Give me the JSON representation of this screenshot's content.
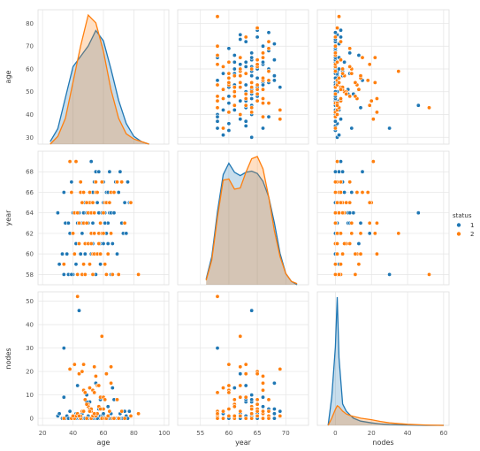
{
  "chart_data": {
    "type": "pairplot",
    "variables": [
      "age",
      "year",
      "nodes"
    ],
    "hue": "status",
    "legend": {
      "title": "status",
      "entries": [
        {
          "label": "1",
          "color": "#1f77b4"
        },
        {
          "label": "2",
          "color": "#ff7f0e"
        }
      ],
      "placement": "right"
    },
    "axes": {
      "age": {
        "label": "age",
        "lim": [
          17,
          103
        ],
        "ticks": [
          20,
          40,
          60,
          80,
          100
        ],
        "range_ticks": [
          30,
          40,
          50,
          60,
          70,
          80
        ]
      },
      "year": {
        "label": "year",
        "lim": [
          51,
          74
        ],
        "ticks": [
          55,
          60,
          65,
          70
        ],
        "range_ticks": [
          58,
          60,
          62,
          64,
          66,
          68
        ]
      },
      "nodes": {
        "label": "nodes",
        "lim": [
          -10,
          63
        ],
        "ticks": [
          0,
          20,
          40,
          60
        ],
        "range_ticks": [
          0,
          10,
          20,
          30,
          40,
          50
        ]
      }
    },
    "ranges": {
      "age": [
        27,
        86
      ],
      "year": [
        57,
        70
      ],
      "nodes": [
        -3,
        54
      ]
    },
    "grid": true,
    "series": [
      {
        "name": "1",
        "color": "#1f77b4",
        "points": [
          [
            30,
            64,
            1
          ],
          [
            31,
            59,
            2
          ],
          [
            33,
            60,
            0
          ],
          [
            34,
            59,
            0
          ],
          [
            34,
            66,
            9
          ],
          [
            34,
            58,
            30
          ],
          [
            35,
            63,
            0
          ],
          [
            36,
            60,
            1
          ],
          [
            37,
            63,
            0
          ],
          [
            37,
            58,
            0
          ],
          [
            38,
            69,
            21
          ],
          [
            38,
            62,
            3
          ],
          [
            39,
            67,
            0
          ],
          [
            40,
            58,
            0
          ],
          [
            40,
            64,
            0
          ],
          [
            41,
            60,
            23
          ],
          [
            41,
            64,
            0
          ],
          [
            42,
            69,
            1
          ],
          [
            42,
            59,
            2
          ],
          [
            43,
            63,
            14
          ],
          [
            43,
            64,
            2
          ],
          [
            44,
            61,
            0
          ],
          [
            44,
            63,
            1
          ],
          [
            45,
            67,
            0
          ],
          [
            45,
            60,
            0
          ],
          [
            46,
            58,
            2
          ],
          [
            46,
            63,
            0
          ],
          [
            47,
            64,
            0
          ],
          [
            47,
            66,
            0
          ],
          [
            48,
            58,
            11
          ],
          [
            48,
            60,
            0
          ],
          [
            49,
            63,
            0
          ],
          [
            49,
            64,
            10
          ],
          [
            50,
            61,
            0
          ],
          [
            50,
            63,
            1
          ],
          [
            50,
            64,
            0
          ],
          [
            51,
            59,
            13
          ],
          [
            51,
            64,
            7
          ],
          [
            52,
            60,
            4
          ],
          [
            52,
            65,
            0
          ],
          [
            53,
            61,
            1
          ],
          [
            53,
            63,
            0
          ],
          [
            54,
            62,
            0
          ],
          [
            54,
            66,
            0
          ],
          [
            55,
            58,
            1
          ],
          [
            55,
            68,
            15
          ],
          [
            56,
            60,
            0
          ],
          [
            57,
            61,
            5
          ],
          [
            57,
            64,
            1
          ],
          [
            58,
            59,
            0
          ],
          [
            58,
            61,
            1
          ],
          [
            59,
            64,
            1
          ],
          [
            59,
            67,
            4
          ],
          [
            60,
            61,
            1
          ],
          [
            60,
            67,
            0
          ],
          [
            61,
            59,
            0
          ],
          [
            61,
            64,
            0
          ],
          [
            62,
            62,
            19
          ],
          [
            62,
            66,
            0
          ],
          [
            63,
            61,
            0
          ],
          [
            63,
            63,
            0
          ],
          [
            64,
            68,
            0
          ],
          [
            64,
            64,
            0
          ],
          [
            65,
            58,
            0
          ],
          [
            65,
            64,
            2
          ],
          [
            66,
            58,
            0
          ],
          [
            66,
            61,
            13
          ],
          [
            67,
            64,
            8
          ],
          [
            68,
            67,
            0
          ],
          [
            69,
            60,
            0
          ],
          [
            70,
            58,
            0
          ],
          [
            70,
            66,
            0
          ],
          [
            71,
            68,
            2
          ],
          [
            72,
            63,
            0
          ],
          [
            73,
            62,
            0
          ],
          [
            74,
            65,
            3
          ],
          [
            75,
            62,
            1
          ],
          [
            76,
            67,
            0
          ],
          [
            77,
            65,
            3
          ],
          [
            78,
            65,
            1
          ],
          [
            44,
            64,
            46
          ],
          [
            49,
            63,
            7
          ],
          [
            57,
            68,
            4
          ],
          [
            60,
            65,
            2
          ],
          [
            63,
            66,
            5
          ],
          [
            39,
            58,
            0
          ],
          [
            52,
            69,
            3
          ],
          [
            56,
            65,
            0
          ],
          [
            46,
            62,
            2
          ],
          [
            54,
            67,
            1
          ],
          [
            61,
            63,
            0
          ],
          [
            67,
            66,
            0
          ],
          [
            42,
            61,
            0
          ],
          [
            48,
            65,
            0
          ],
          [
            58,
            63,
            8
          ],
          [
            53,
            66,
            0
          ]
        ]
      },
      {
        "name": "2",
        "color": "#ff7f0e",
        "points": [
          [
            34,
            59,
            0
          ],
          [
            38,
            69,
            21
          ],
          [
            39,
            66,
            0
          ],
          [
            41,
            60,
            23
          ],
          [
            41,
            64,
            0
          ],
          [
            42,
            69,
            1
          ],
          [
            43,
            58,
            52
          ],
          [
            43,
            64,
            2
          ],
          [
            44,
            63,
            19
          ],
          [
            45,
            66,
            0
          ],
          [
            45,
            67,
            1
          ],
          [
            46,
            58,
            3
          ],
          [
            46,
            65,
            20
          ],
          [
            47,
            63,
            23
          ],
          [
            47,
            66,
            12
          ],
          [
            48,
            58,
            11
          ],
          [
            48,
            61,
            8
          ],
          [
            49,
            63,
            0
          ],
          [
            50,
            61,
            6
          ],
          [
            50,
            64,
            5
          ],
          [
            51,
            65,
            4
          ],
          [
            51,
            59,
            13
          ],
          [
            52,
            61,
            0
          ],
          [
            52,
            62,
            3
          ],
          [
            53,
            58,
            1
          ],
          [
            53,
            60,
            12
          ],
          [
            53,
            65,
            1
          ],
          [
            54,
            60,
            11
          ],
          [
            54,
            62,
            22
          ],
          [
            55,
            67,
            1
          ],
          [
            55,
            66,
            18
          ],
          [
            56,
            60,
            14
          ],
          [
            57,
            61,
            5
          ],
          [
            57,
            62,
            14
          ],
          [
            58,
            63,
            9
          ],
          [
            59,
            62,
            35
          ],
          [
            59,
            67,
            0
          ],
          [
            60,
            62,
            9
          ],
          [
            61,
            59,
            0
          ],
          [
            61,
            65,
            8
          ],
          [
            62,
            58,
            0
          ],
          [
            62,
            65,
            19
          ],
          [
            63,
            60,
            1
          ],
          [
            65,
            62,
            22
          ],
          [
            65,
            66,
            15
          ],
          [
            66,
            58,
            0
          ],
          [
            67,
            66,
            0
          ],
          [
            69,
            67,
            8
          ],
          [
            70,
            58,
            0
          ],
          [
            72,
            67,
            3
          ],
          [
            74,
            63,
            0
          ],
          [
            78,
            65,
            1
          ],
          [
            83,
            58,
            2
          ],
          [
            44,
            61,
            1
          ],
          [
            52,
            64,
            4
          ],
          [
            56,
            66,
            2
          ],
          [
            60,
            64,
            4
          ],
          [
            49,
            65,
            6
          ],
          [
            54,
            64,
            2
          ],
          [
            64,
            65,
            3
          ],
          [
            47,
            59,
            3
          ],
          [
            58,
            60,
            4
          ],
          [
            40,
            62,
            1
          ],
          [
            51,
            66,
            3
          ]
        ]
      }
    ],
    "kde": {
      "age": {
        "x": [
          25,
          30,
          35,
          40,
          45,
          50,
          55,
          60,
          65,
          70,
          75,
          80,
          85,
          90
        ],
        "1": [
          0.001,
          0.006,
          0.018,
          0.03,
          0.034,
          0.038,
          0.044,
          0.04,
          0.029,
          0.017,
          0.008,
          0.003,
          0.001,
          0.0
        ],
        "2": [
          0.0,
          0.003,
          0.01,
          0.024,
          0.038,
          0.05,
          0.047,
          0.036,
          0.021,
          0.01,
          0.004,
          0.002,
          0.001,
          0.0
        ]
      },
      "year": {
        "x": [
          56,
          57,
          58,
          59,
          60,
          61,
          62,
          63,
          64,
          65,
          66,
          67,
          68,
          69,
          70,
          71,
          72
        ],
        "1": [
          0.005,
          0.025,
          0.065,
          0.098,
          0.108,
          0.1,
          0.097,
          0.1,
          0.101,
          0.099,
          0.092,
          0.078,
          0.055,
          0.028,
          0.01,
          0.003,
          0.0
        ],
        "2": [
          0.004,
          0.022,
          0.06,
          0.093,
          0.094,
          0.085,
          0.086,
          0.1,
          0.112,
          0.114,
          0.103,
          0.078,
          0.048,
          0.025,
          0.01,
          0.003,
          0.001
        ]
      },
      "nodes": {
        "x": [
          -4,
          -2,
          0,
          1,
          2,
          4,
          6,
          8,
          10,
          14,
          20,
          25,
          30,
          40,
          50,
          60
        ],
        "1": [
          0.0,
          0.08,
          0.22,
          0.36,
          0.19,
          0.06,
          0.04,
          0.03,
          0.02,
          0.012,
          0.007,
          0.004,
          0.002,
          0.001,
          0.0,
          0.0
        ],
        "2": [
          0.0,
          0.02,
          0.045,
          0.055,
          0.052,
          0.04,
          0.032,
          0.028,
          0.025,
          0.02,
          0.016,
          0.011,
          0.007,
          0.003,
          0.001,
          0.0
        ]
      }
    }
  }
}
